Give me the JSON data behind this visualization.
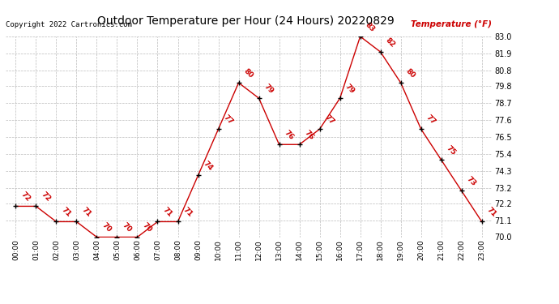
{
  "title": "Outdoor Temperature per Hour (24 Hours) 20220829",
  "copyright": "Copyright 2022 Cartronics.com",
  "legend_label": "Temperature (°F)",
  "hours": [
    "00:00",
    "01:00",
    "02:00",
    "03:00",
    "04:00",
    "05:00",
    "06:00",
    "07:00",
    "08:00",
    "09:00",
    "10:00",
    "11:00",
    "12:00",
    "13:00",
    "14:00",
    "15:00",
    "16:00",
    "17:00",
    "18:00",
    "19:00",
    "20:00",
    "21:00",
    "22:00",
    "23:00"
  ],
  "temps": [
    72,
    72,
    71,
    71,
    70,
    70,
    70,
    71,
    71,
    74,
    77,
    80,
    79,
    76,
    76,
    77,
    79,
    83,
    82,
    80,
    77,
    75,
    73,
    71
  ],
  "ylim_min": 70.0,
  "ylim_max": 83.0,
  "line_color": "#cc0000",
  "marker_color": "#000000",
  "bg_color": "#ffffff",
  "grid_color": "#bbbbbb",
  "title_color": "#000000",
  "copyright_color": "#000000",
  "label_color": "#cc0000",
  "annotation_color": "#cc0000",
  "yticks": [
    70.0,
    71.1,
    72.2,
    73.2,
    74.3,
    75.4,
    76.5,
    77.6,
    78.7,
    79.8,
    80.8,
    81.9,
    83.0
  ]
}
